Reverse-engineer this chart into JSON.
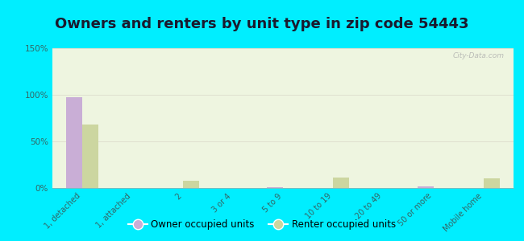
{
  "title": "Owners and renters by unit type in zip code 54443",
  "categories": [
    "1, detached",
    "1, attached",
    "2",
    "3 or 4",
    "5 to 9",
    "10 to 19",
    "20 to 49",
    "50 or more",
    "Mobile home"
  ],
  "owner_values": [
    97,
    0,
    0,
    0,
    1,
    0,
    0,
    2,
    0
  ],
  "renter_values": [
    68,
    0,
    8,
    0,
    0,
    11,
    0,
    0,
    10
  ],
  "owner_color": "#c9aed6",
  "renter_color": "#ccd6a0",
  "background_outer": "#00eeff",
  "background_plot": "#eef5e0",
  "ylim": [
    0,
    150
  ],
  "yticks": [
    0,
    50,
    100,
    150
  ],
  "ytick_labels": [
    "0%",
    "50%",
    "100%",
    "150%"
  ],
  "title_fontsize": 13,
  "title_color": "#1a1a2e",
  "watermark": "City-Data.com",
  "legend_owner": "Owner occupied units",
  "legend_renter": "Renter occupied units",
  "tick_label_color": "#336666",
  "grid_color": "#ddddcc",
  "bar_width": 0.32
}
